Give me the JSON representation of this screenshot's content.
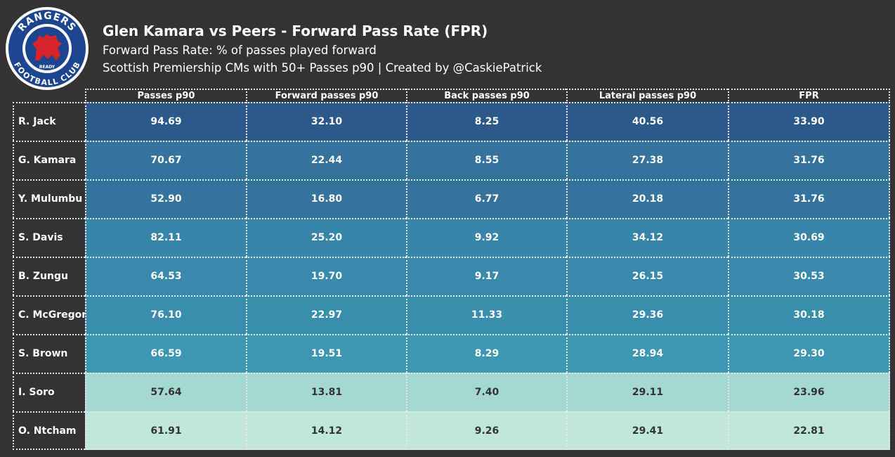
{
  "header": {
    "title": "Glen Kamara vs Peers - Forward Pass Rate (FPR)",
    "subtitle1": "Forward Pass Rate: % of passes played forward",
    "subtitle2": "Scottish Premiership CMs with 50+ Passes p90 | Created by @CaskiePatrick"
  },
  "logo": {
    "icon": "rangers-crest-icon",
    "text_top": "RANGERS",
    "text_bottom": "FOOTBALL CLUB",
    "text_ready": "READY",
    "colors": {
      "ring": "#1b458f",
      "lion": "#d8232a"
    }
  },
  "chart_data": {
    "type": "table",
    "columns": [
      "Passes p90",
      "Forward passes p90",
      "Back passes p90",
      "Lateral passes p90",
      "FPR"
    ],
    "rows": [
      {
        "player": "R. Jack",
        "values": [
          "94.69",
          "32.10",
          "8.25",
          "40.56",
          "33.90"
        ],
        "bg": "#2b5a8a",
        "fg": "#ffffff"
      },
      {
        "player": "G. Kamara",
        "values": [
          "70.67",
          "22.44",
          "8.55",
          "27.38",
          "31.76"
        ],
        "bg": "#34739c",
        "fg": "#ffffff"
      },
      {
        "player": "Y. Mulumbu",
        "values": [
          "52.90",
          "16.80",
          "6.77",
          "20.18",
          "31.76"
        ],
        "bg": "#34739c",
        "fg": "#ffffff"
      },
      {
        "player": "S. Davis",
        "values": [
          "82.11",
          "25.20",
          "9.92",
          "34.12",
          "30.69"
        ],
        "bg": "#3785a9",
        "fg": "#ffffff"
      },
      {
        "player": "B. Zungu",
        "values": [
          "64.53",
          "19.70",
          "9.17",
          "26.15",
          "30.53"
        ],
        "bg": "#3889ab",
        "fg": "#ffffff"
      },
      {
        "player": "C. McGregor",
        "values": [
          "76.10",
          "22.97",
          "11.33",
          "29.36",
          "30.18"
        ],
        "bg": "#398eae",
        "fg": "#ffffff"
      },
      {
        "player": "S. Brown",
        "values": [
          "66.59",
          "19.51",
          "8.29",
          "28.94",
          "29.30"
        ],
        "bg": "#3b97b2",
        "fg": "#ffffff"
      },
      {
        "player": "I. Soro",
        "values": [
          "57.64",
          "13.81",
          "7.40",
          "29.11",
          "23.96"
        ],
        "bg": "#a4d8d3",
        "fg": "#333333"
      },
      {
        "player": "O. Ntcham",
        "values": [
          "61.91",
          "14.12",
          "9.26",
          "29.41",
          "22.81"
        ],
        "bg": "#bfe7da",
        "fg": "#333333"
      }
    ]
  }
}
